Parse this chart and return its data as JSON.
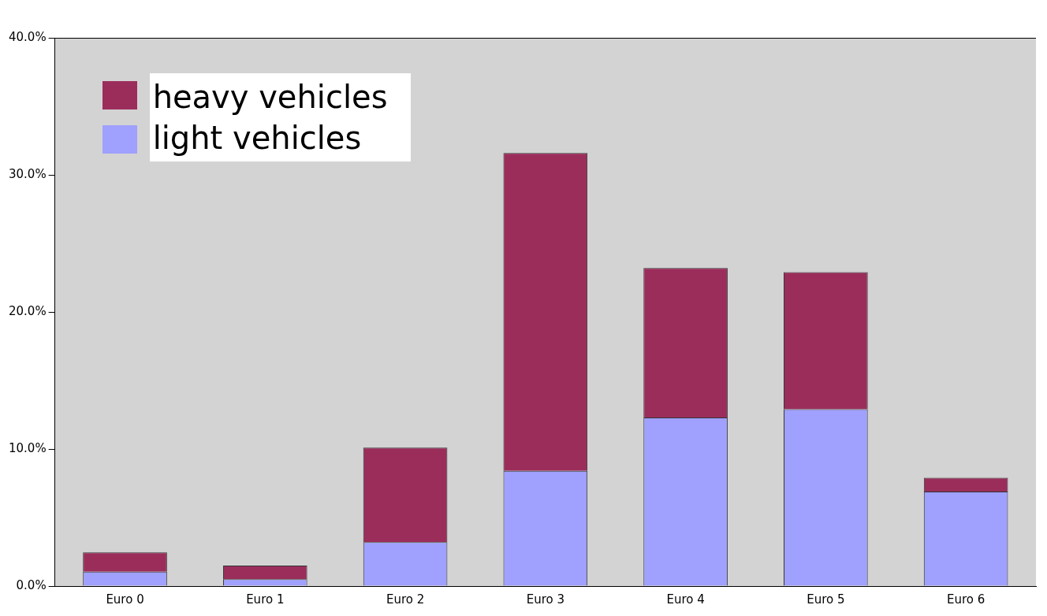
{
  "chart_data": {
    "type": "bar",
    "stacked": true,
    "categories": [
      "Euro 0",
      "Euro 1",
      "Euro 2",
      "Euro 3",
      "Euro 4",
      "Euro 5",
      "Euro 6"
    ],
    "series": [
      {
        "name": "light vehicles",
        "color": "#a0a0ff",
        "values": [
          1.05,
          0.5,
          3.2,
          8.4,
          12.3,
          12.9,
          6.9
        ]
      },
      {
        "name": "heavy vehicles",
        "color": "#9b2d5b",
        "values": [
          1.4,
          1.0,
          6.9,
          23.2,
          10.9,
          10.0,
          1.0
        ]
      }
    ],
    "ylim": [
      0,
      40
    ],
    "yticks": [
      {
        "value": 0,
        "label": "0.0%"
      },
      {
        "value": 10,
        "label": "10.0%"
      },
      {
        "value": 20,
        "label": "20.0%"
      },
      {
        "value": 30,
        "label": "30.0%"
      },
      {
        "value": 40,
        "label": "40.0%"
      }
    ],
    "grid": false,
    "legend": "top left"
  }
}
